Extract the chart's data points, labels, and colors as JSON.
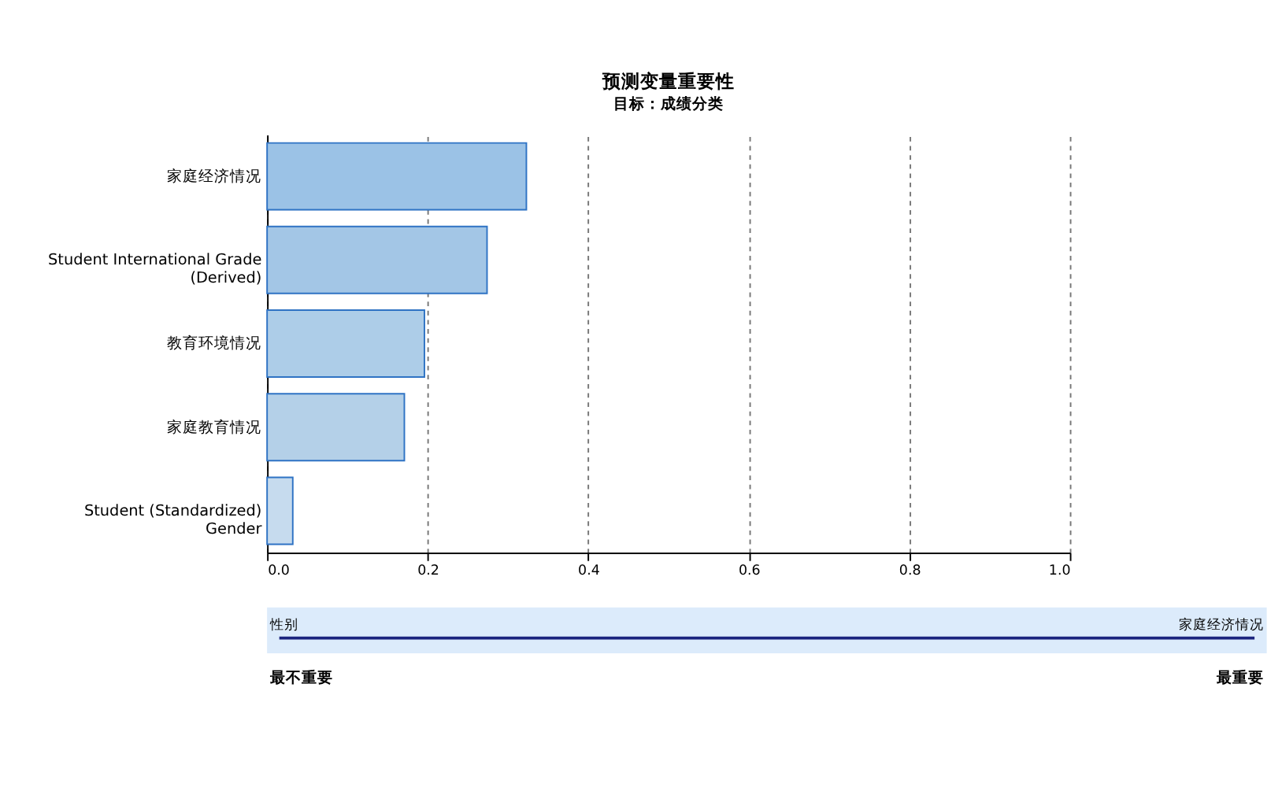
{
  "chart_data": {
    "type": "bar",
    "orientation": "horizontal",
    "title": "预测变量重要性",
    "subtitle": "目标：成绩分类",
    "categories": [
      "家庭经济情况",
      "Student International Grade\n(Derived)",
      "教育环境情况",
      "家庭教育情况",
      "Student (Standardized)\nGender"
    ],
    "values": [
      0.323,
      0.274,
      0.196,
      0.171,
      0.032
    ],
    "colors": [
      "#9bc2e6",
      "#a3c6e6",
      "#adcde8",
      "#b4d0e8",
      "#c6dbee"
    ],
    "xlim": [
      0,
      1
    ],
    "xticks": [
      {
        "value": 0,
        "label": "0.0"
      },
      {
        "value": 0.2,
        "label": "0.2"
      },
      {
        "value": 0.4,
        "label": "0.4"
      },
      {
        "value": 0.6,
        "label": "0.6"
      },
      {
        "value": 0.8,
        "label": "0.8"
      },
      {
        "value": 1,
        "label": "1.0"
      }
    ],
    "grid": "x",
    "legend": false,
    "annotations": [
      "性别",
      "家庭经济情况",
      "最不重要",
      "最重要"
    ]
  }
}
